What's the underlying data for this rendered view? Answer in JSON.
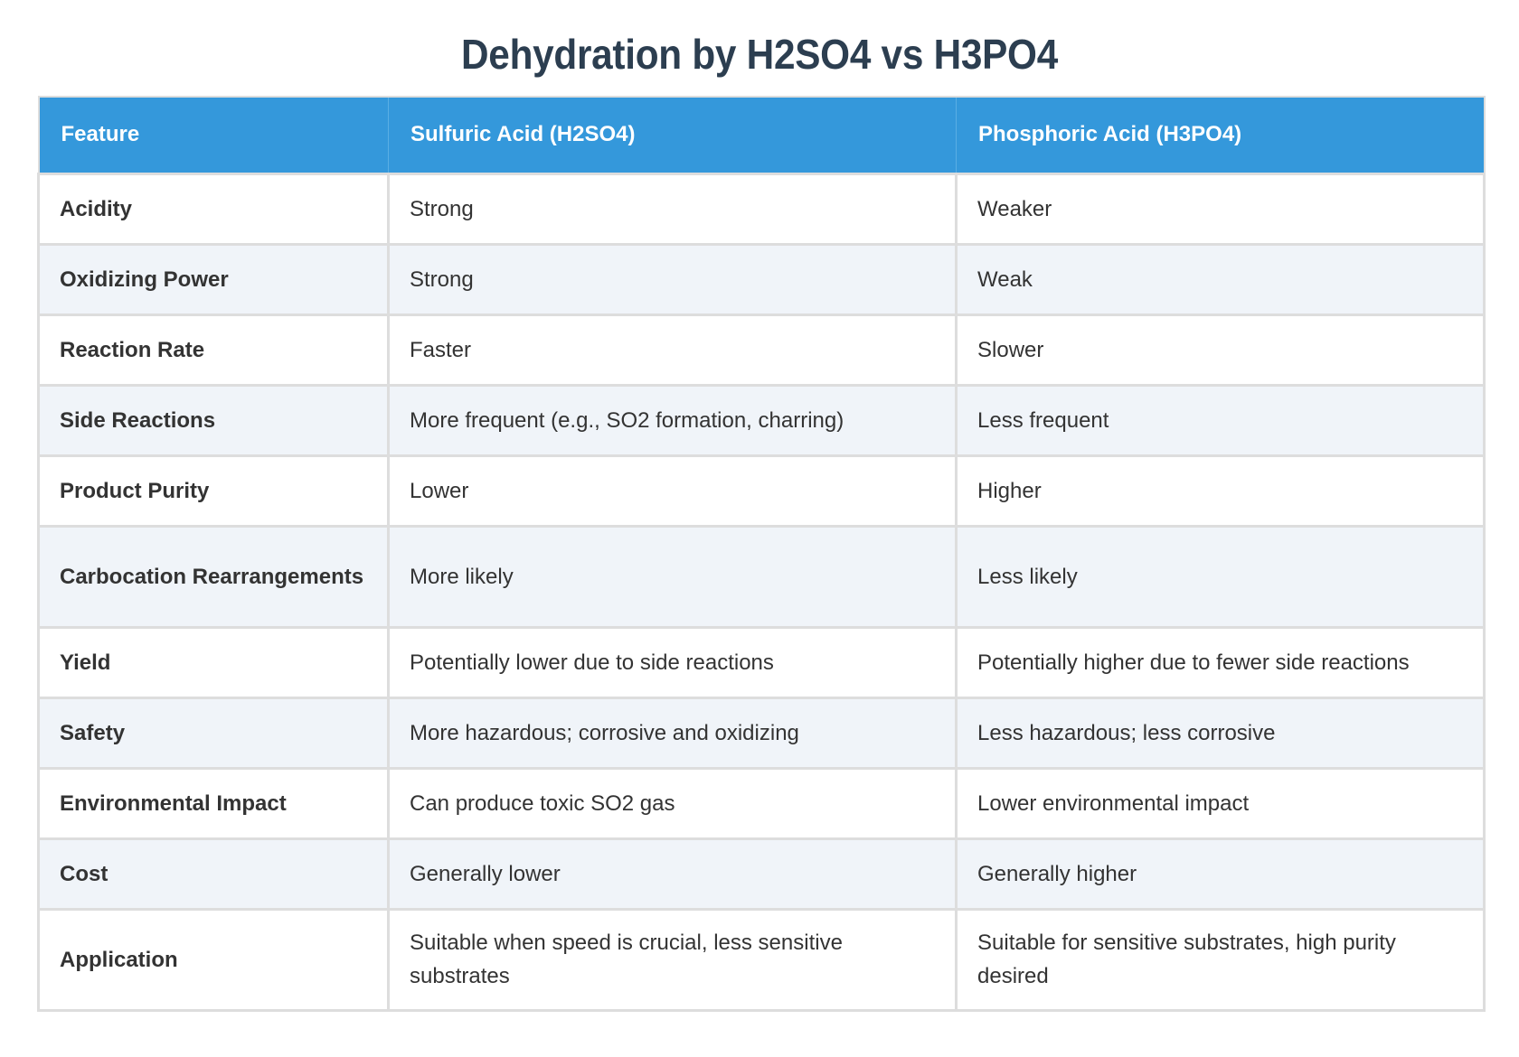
{
  "title": "Dehydration by H2SO4 vs H3PO4",
  "colors": {
    "title": "#2c3e50",
    "header_bg": "#3498db",
    "header_text": "#ffffff",
    "row_alt_bg": "#f0f4f9",
    "border": "#dddddd",
    "text": "#333333"
  },
  "table": {
    "headers": [
      "Feature",
      "Sulfuric Acid (H2SO4)",
      "Phosphoric Acid (H3PO4)"
    ],
    "rows": [
      {
        "feature": "Acidity",
        "h2so4": "Strong",
        "h3po4": "Weaker"
      },
      {
        "feature": "Oxidizing Power",
        "h2so4": "Strong",
        "h3po4": "Weak"
      },
      {
        "feature": "Reaction Rate",
        "h2so4": "Faster",
        "h3po4": "Slower"
      },
      {
        "feature": "Side Reactions",
        "h2so4": "More frequent (e.g., SO2 formation, charring)",
        "h3po4": "Less frequent"
      },
      {
        "feature": "Product Purity",
        "h2so4": "Lower",
        "h3po4": "Higher"
      },
      {
        "feature": "Carbocation Rearrangements",
        "h2so4": "More likely",
        "h3po4": "Less likely"
      },
      {
        "feature": "Yield",
        "h2so4": "Potentially lower due to side reactions",
        "h3po4": "Potentially higher due to fewer side reactions"
      },
      {
        "feature": "Safety",
        "h2so4": "More hazardous; corrosive and oxidizing",
        "h3po4": "Less hazardous; less corrosive"
      },
      {
        "feature": "Environmental Impact",
        "h2so4": "Can produce toxic SO2 gas",
        "h3po4": "Lower environmental impact"
      },
      {
        "feature": "Cost",
        "h2so4": "Generally lower",
        "h3po4": "Generally higher"
      },
      {
        "feature": "Application",
        "h2so4": "Suitable when speed is crucial, less sensitive substrates",
        "h3po4": "Suitable for sensitive substrates, high purity desired"
      }
    ]
  }
}
